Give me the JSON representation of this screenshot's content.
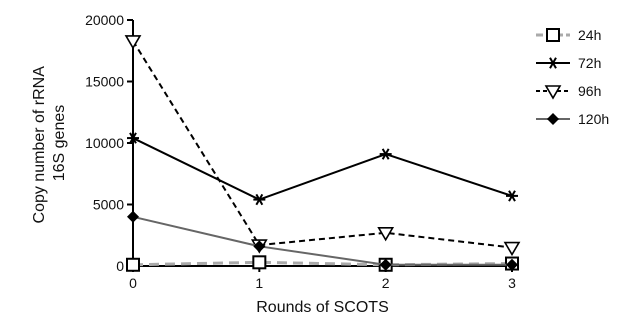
{
  "chart_data": {
    "type": "line",
    "xlabel": "Rounds of SCOTS",
    "ylabel_lines": [
      "Copy number of  rRNA",
      "16S genes"
    ],
    "x": [
      0,
      1,
      2,
      3
    ],
    "xlim": [
      0,
      3
    ],
    "ylim": [
      0,
      20000
    ],
    "x_ticks": [
      "0",
      "1",
      "2",
      "3"
    ],
    "y_ticks": [
      0,
      5000,
      10000,
      15000,
      20000
    ],
    "y_tick_labels": [
      "0",
      "5000",
      "10000",
      "15000",
      "20000"
    ],
    "grid": false,
    "legend_position": "right",
    "series": [
      {
        "name": "24h",
        "values": [
          100,
          300,
          100,
          200
        ],
        "color": "#aaaaaa",
        "dash": "10,6",
        "marker": "square-open",
        "width": 3
      },
      {
        "name": "72h",
        "values": [
          10400,
          5400,
          9100,
          5700
        ],
        "color": "#000000",
        "dash": "",
        "marker": "asterisk",
        "width": 2
      },
      {
        "name": "96h",
        "values": [
          18300,
          1700,
          2700,
          1500
        ],
        "color": "#000000",
        "dash": "6,4",
        "marker": "triangle-down-open",
        "width": 2
      },
      {
        "name": "120h",
        "values": [
          4000,
          1600,
          100,
          100
        ],
        "color": "#666666",
        "dash": "",
        "marker": "diamond",
        "width": 2
      }
    ]
  }
}
